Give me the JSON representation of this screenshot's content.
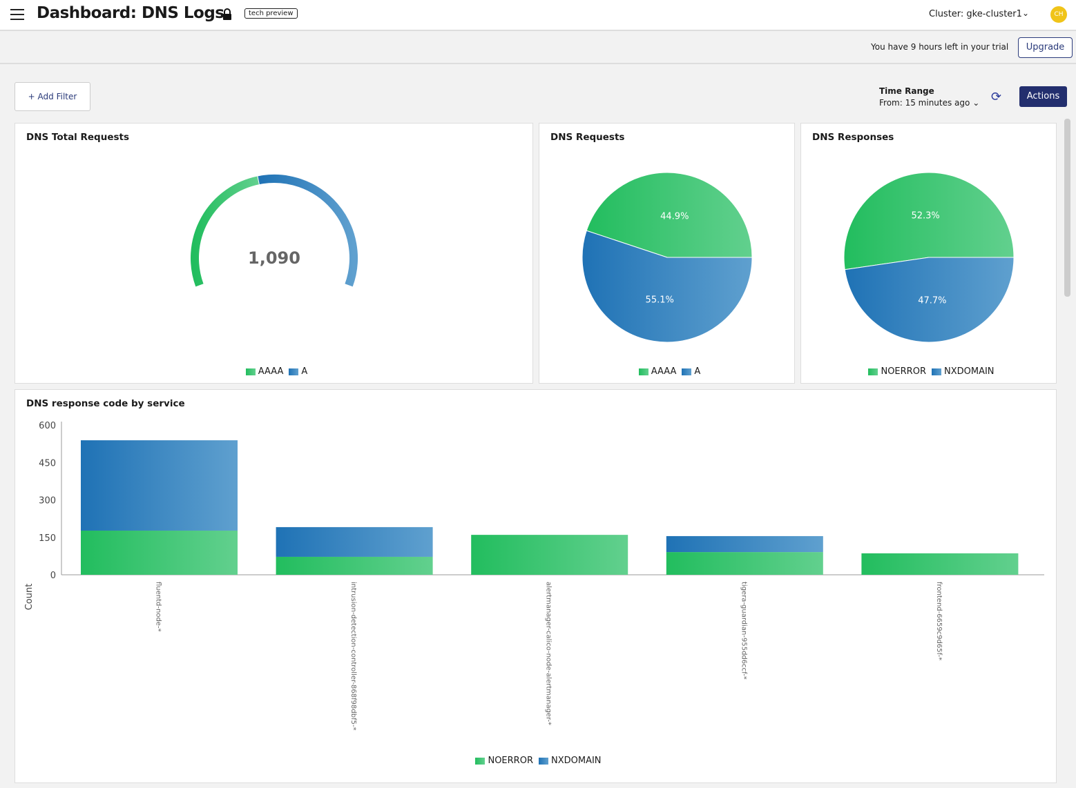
{
  "header": {
    "title": "Dashboard: DNS Logs",
    "badge": "tech preview",
    "cluster": "Cluster: gke-cluster1",
    "avatar": "CH"
  },
  "trial": {
    "text": "You have 9 hours left in your trial",
    "upgrade": "Upgrade"
  },
  "toolbar": {
    "add_filter": "+ Add Filter",
    "time_range_label": "Time Range",
    "time_range_value": "From: 15 minutes ago",
    "actions": "Actions"
  },
  "colors": {
    "green": "#22bd5e",
    "blue": "#1f72b5",
    "primary": "#232f6e",
    "avatar": "#f0c419"
  },
  "chart_data": [
    {
      "type": "gauge",
      "title": "DNS Total Requests",
      "value": "1,090",
      "legend": [
        "AAAA",
        "A"
      ],
      "fractions": [
        0.449,
        0.551
      ]
    },
    {
      "type": "pie",
      "title": "DNS Requests",
      "legend": [
        "AAAA",
        "A"
      ],
      "values": [
        44.9,
        55.1
      ],
      "labels": [
        "44.9%",
        "55.1%"
      ]
    },
    {
      "type": "pie",
      "title": "DNS Responses",
      "legend": [
        "NOERROR",
        "NXDOMAIN"
      ],
      "values": [
        52.3,
        47.7
      ],
      "labels": [
        "52.3%",
        "47.7%"
      ]
    },
    {
      "type": "bar",
      "stacked": true,
      "title": "DNS response code by service",
      "ylabel": "Count",
      "ylim": [
        0,
        600
      ],
      "yticks": [
        "0",
        "150",
        "300",
        "450",
        "600"
      ],
      "categories": [
        "fluentd-node-*",
        "intrusion-detection-controller-868f98dbf5-*",
        "alertmanager-calico-node-alertmanager-*",
        "tigera-guardian-955dd6ccf-*",
        "frontend-6659c9d65f-*"
      ],
      "series": [
        {
          "name": "NOERROR",
          "values": [
            177,
            72,
            160,
            91,
            86
          ]
        },
        {
          "name": "NXDOMAIN",
          "values": [
            362,
            119,
            0,
            64,
            0
          ]
        }
      ]
    }
  ]
}
